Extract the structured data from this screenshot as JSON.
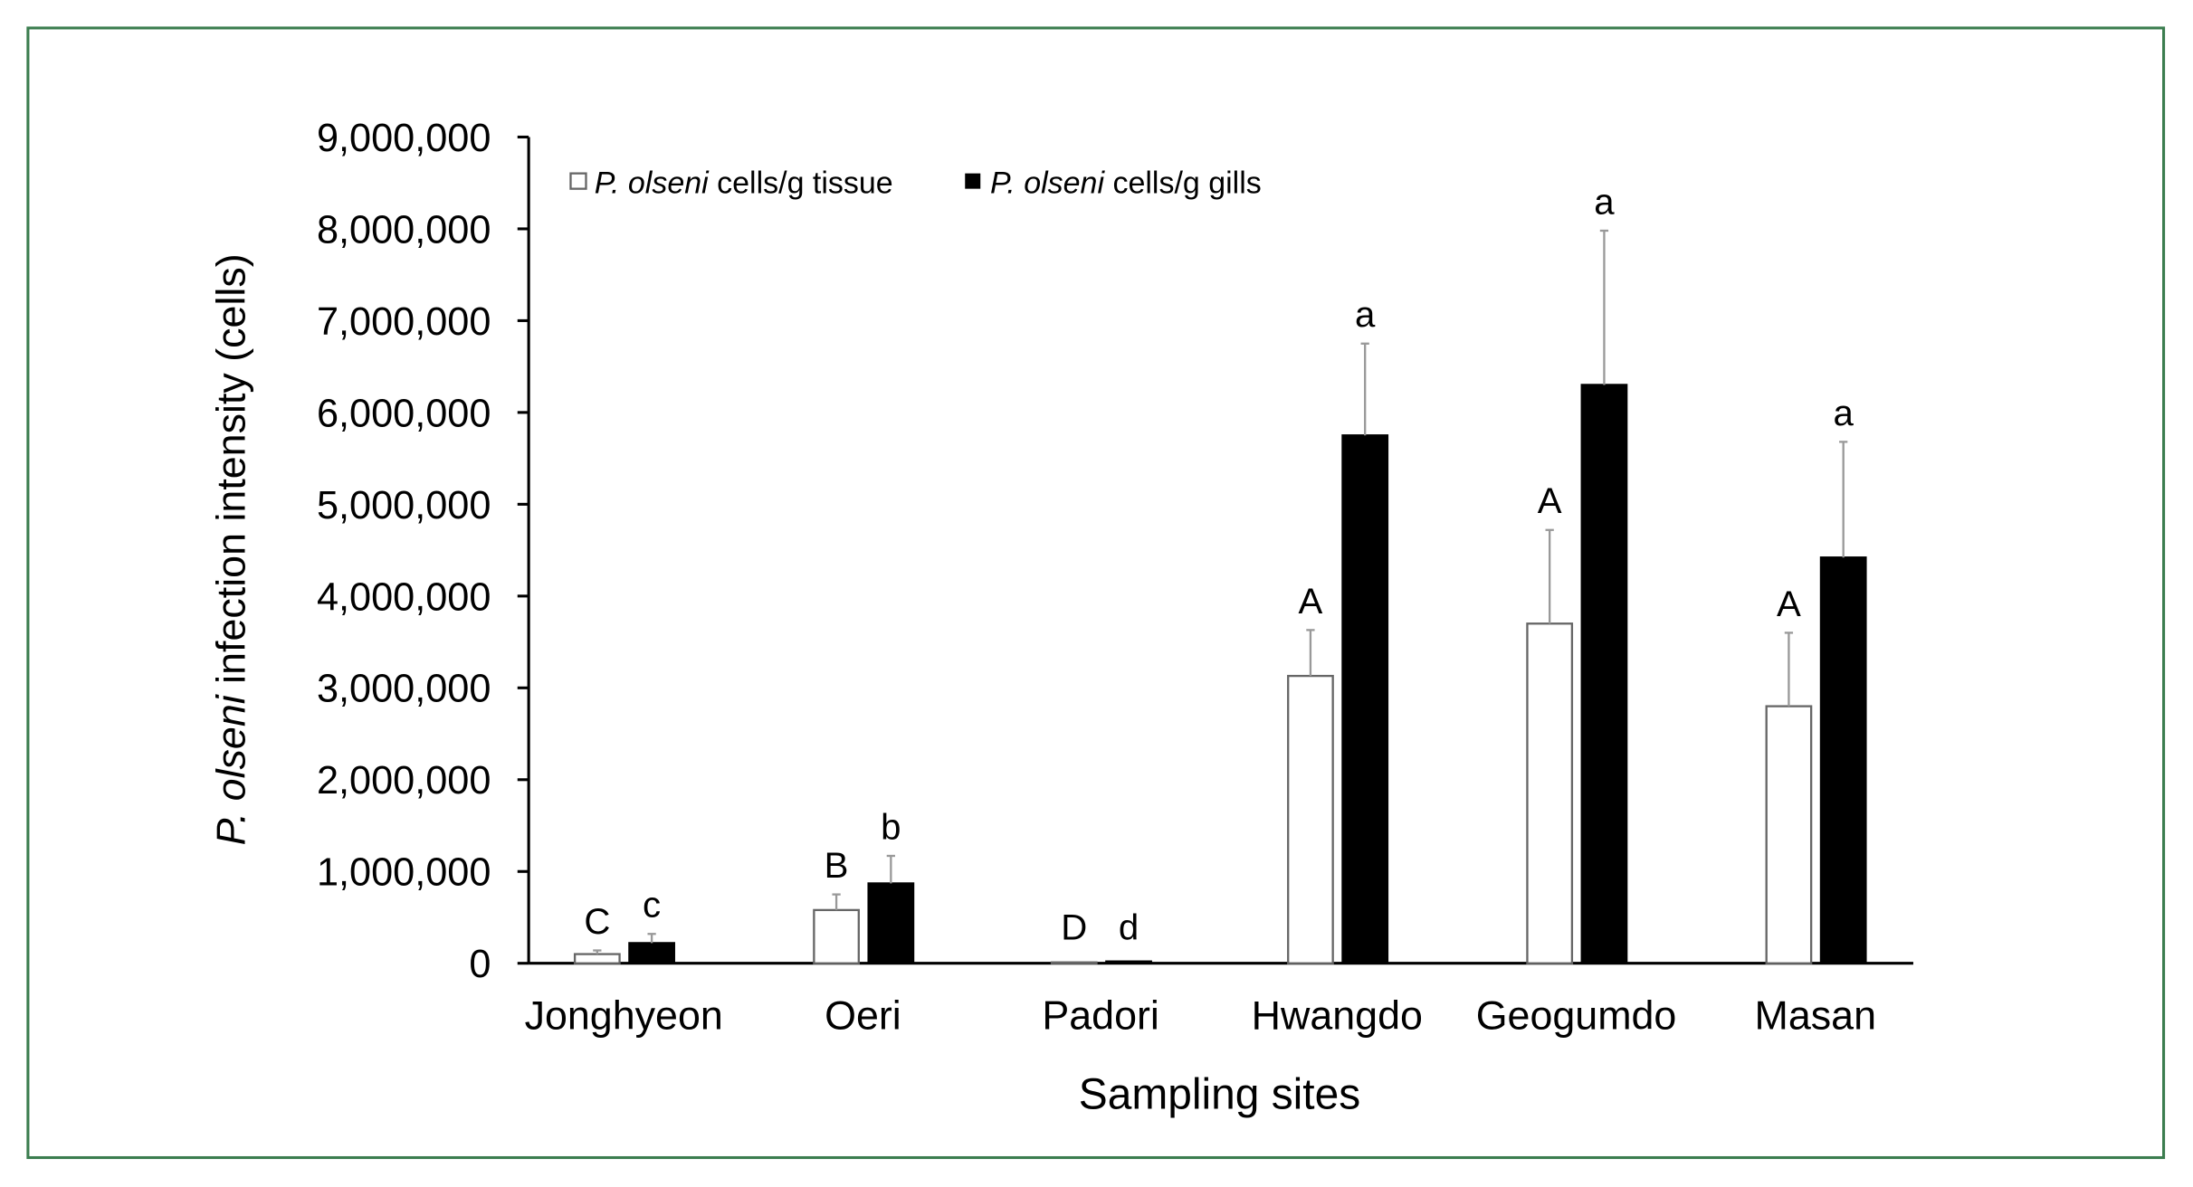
{
  "chart_data": {
    "type": "bar",
    "xlabel": "Sampling sites",
    "ylabel_italic": "P. olseni",
    "ylabel_rest": " infection intensity (cells)",
    "ylim": [
      0,
      9000000
    ],
    "yticks": [
      0,
      1000000,
      2000000,
      3000000,
      4000000,
      5000000,
      6000000,
      7000000,
      8000000,
      9000000
    ],
    "ytick_labels": [
      "0",
      "1,000,000",
      "2,000,000",
      "3,000,000",
      "4,000,000",
      "5,000,000",
      "6,000,000",
      "7,000,000",
      "8,000,000",
      "9,000,000"
    ],
    "categories": [
      "Jonghyeon",
      "Oeri",
      "Padori",
      "Hwangdo",
      "Geogumdo",
      "Masan"
    ],
    "legend_position": "top-left",
    "grid": false,
    "series": [
      {
        "name_italic": "P. olseni",
        "name_rest": " cells/g tissue",
        "fill": "#ffffff",
        "stroke": "#666666",
        "values": [
          100000,
          580000,
          10000,
          3130000,
          3700000,
          2800000
        ],
        "error_upper": [
          140000,
          750000,
          10000,
          3630000,
          4720000,
          3600000
        ],
        "letters": [
          "C",
          "B",
          "D",
          "A",
          "A",
          "A"
        ]
      },
      {
        "name_italic": "P. olseni",
        "name_rest": " cells/g gills",
        "fill": "#000000",
        "stroke": "#000000",
        "values": [
          220000,
          870000,
          20000,
          5750000,
          6300000,
          4420000
        ],
        "error_upper": [
          320000,
          1170000,
          20000,
          6750000,
          7980000,
          5680000
        ],
        "letters": [
          "c",
          "b",
          "d",
          "a",
          "a",
          "a"
        ]
      }
    ]
  },
  "colors": {
    "frame": "#3b7d4f",
    "error_bar": "#999999"
  }
}
